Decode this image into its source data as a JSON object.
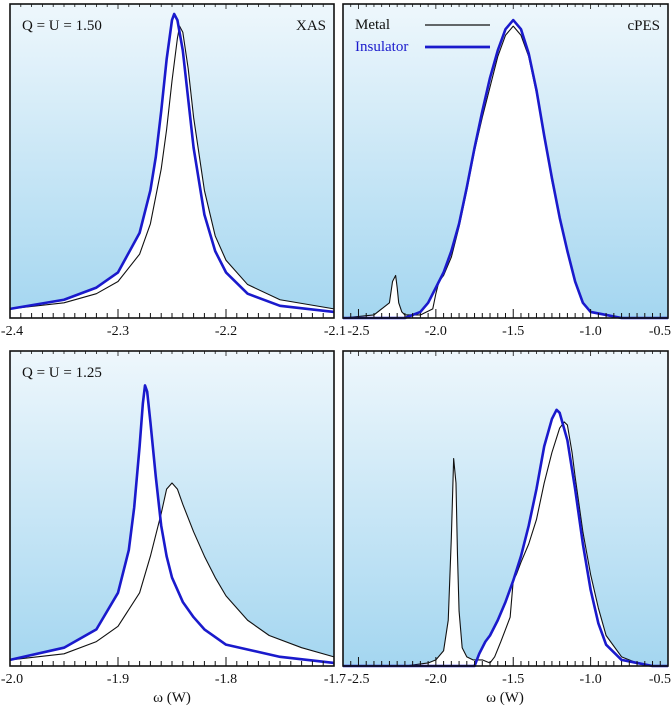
{
  "figure": {
    "colors": {
      "metal": "#111111",
      "insulator": "#1a1acc",
      "bg_top": "#eef7fc",
      "bg_bottom": "#a4d6f0"
    }
  },
  "chart_data": [
    {
      "type": "line",
      "panel": "top-left",
      "annotation_left": "Q = U = 1.50",
      "annotation_right": "XAS",
      "xlabel": "",
      "ylabel": "",
      "xlim": [
        -2.4,
        -2.1
      ],
      "ticks": [
        "-2.4",
        "-2.3",
        "-2.2",
        "-2.1"
      ],
      "ymax": 1.0,
      "series": [
        {
          "key": "metal",
          "x": [
            -2.4,
            -2.35,
            -2.32,
            -2.3,
            -2.28,
            -2.27,
            -2.26,
            -2.255,
            -2.25,
            -2.245,
            -2.243,
            -2.24,
            -2.235,
            -2.23,
            -2.22,
            -2.21,
            -2.2,
            -2.18,
            -2.15,
            -2.1
          ],
          "y": [
            0.03,
            0.05,
            0.08,
            0.12,
            0.21,
            0.31,
            0.49,
            0.62,
            0.78,
            0.92,
            0.96,
            0.94,
            0.82,
            0.66,
            0.42,
            0.27,
            0.19,
            0.11,
            0.06,
            0.03
          ]
        },
        {
          "key": "insulator",
          "x": [
            -2.4,
            -2.35,
            -2.32,
            -2.3,
            -2.28,
            -2.27,
            -2.265,
            -2.26,
            -2.255,
            -2.25,
            -2.248,
            -2.245,
            -2.24,
            -2.235,
            -2.23,
            -2.22,
            -2.21,
            -2.2,
            -2.18,
            -2.15,
            -2.1
          ],
          "y": [
            0.03,
            0.06,
            0.1,
            0.15,
            0.28,
            0.42,
            0.53,
            0.68,
            0.85,
            0.98,
            1.0,
            0.98,
            0.88,
            0.72,
            0.56,
            0.34,
            0.22,
            0.15,
            0.08,
            0.04,
            0.02
          ]
        }
      ]
    },
    {
      "type": "line",
      "panel": "top-right",
      "annotation_right": "cPES",
      "legend": [
        {
          "key": "metal",
          "label": "Metal"
        },
        {
          "key": "insulator",
          "label": "Insulator"
        }
      ],
      "xlabel": "",
      "ylabel": "",
      "xlim": [
        -2.6,
        -0.5
      ],
      "ticks": [
        "-2.5",
        "-2.0",
        "-1.5",
        "-1.0",
        "-0.5"
      ],
      "ymax": 1.0,
      "series": [
        {
          "key": "metal",
          "x": [
            -2.6,
            -2.4,
            -2.3,
            -2.28,
            -2.26,
            -2.25,
            -2.24,
            -2.22,
            -2.2,
            -2.1,
            -2.02,
            -2.0,
            -1.98,
            -1.95,
            -1.9,
            -1.85,
            -1.8,
            -1.75,
            -1.7,
            -1.65,
            -1.6,
            -1.55,
            -1.5,
            -1.45,
            -1.4,
            -1.35,
            -1.3,
            -1.25,
            -1.2,
            -1.15,
            -1.1,
            -1.05,
            -1.0,
            -0.9,
            -0.8,
            -0.7,
            -0.6,
            -0.5
          ],
          "y": [
            0.0,
            0.01,
            0.05,
            0.12,
            0.14,
            0.1,
            0.05,
            0.02,
            0.01,
            0.01,
            0.03,
            0.08,
            0.12,
            0.14,
            0.2,
            0.3,
            0.42,
            0.55,
            0.66,
            0.76,
            0.86,
            0.93,
            0.96,
            0.93,
            0.86,
            0.74,
            0.6,
            0.45,
            0.33,
            0.22,
            0.12,
            0.05,
            0.02,
            0.01,
            0.0,
            0.0,
            0.0,
            0.0
          ]
        },
        {
          "key": "insulator",
          "x": [
            -2.6,
            -2.3,
            -2.2,
            -2.1,
            -2.05,
            -2.0,
            -1.95,
            -1.9,
            -1.85,
            -1.8,
            -1.75,
            -1.7,
            -1.65,
            -1.6,
            -1.55,
            -1.5,
            -1.45,
            -1.4,
            -1.35,
            -1.3,
            -1.25,
            -1.2,
            -1.15,
            -1.1,
            -1.05,
            -1.0,
            -0.9,
            -0.8,
            -0.7,
            -0.6,
            -0.5
          ],
          "y": [
            0.0,
            0.0,
            0.0,
            0.02,
            0.05,
            0.1,
            0.15,
            0.22,
            0.31,
            0.43,
            0.56,
            0.68,
            0.79,
            0.88,
            0.95,
            0.98,
            0.95,
            0.87,
            0.75,
            0.6,
            0.46,
            0.33,
            0.22,
            0.12,
            0.05,
            0.02,
            0.01,
            0.0,
            0.0,
            0.0,
            0.0
          ]
        }
      ]
    },
    {
      "type": "line",
      "panel": "bottom-left",
      "annotation_left": "Q = U = 1.25",
      "xlabel": "ω (W)",
      "ylabel": "",
      "xlim": [
        -2.0,
        -1.7
      ],
      "ticks": [
        "-2.0",
        "-1.9",
        "-1.8",
        "-1.7"
      ],
      "ymax": 1.0,
      "series": [
        {
          "key": "metal",
          "x": [
            -2.0,
            -1.95,
            -1.92,
            -1.9,
            -1.88,
            -1.87,
            -1.86,
            -1.855,
            -1.85,
            -1.845,
            -1.84,
            -1.83,
            -1.82,
            -1.81,
            -1.8,
            -1.78,
            -1.76,
            -1.73,
            -1.7
          ],
          "y": [
            0.02,
            0.04,
            0.08,
            0.13,
            0.24,
            0.36,
            0.5,
            0.58,
            0.6,
            0.58,
            0.53,
            0.44,
            0.36,
            0.29,
            0.23,
            0.15,
            0.1,
            0.06,
            0.03
          ]
        },
        {
          "key": "insulator",
          "x": [
            -2.0,
            -1.95,
            -1.92,
            -1.9,
            -1.89,
            -1.885,
            -1.88,
            -1.877,
            -1.875,
            -1.873,
            -1.87,
            -1.865,
            -1.86,
            -1.855,
            -1.85,
            -1.84,
            -1.83,
            -1.82,
            -1.8,
            -1.75,
            -1.7
          ],
          "y": [
            0.02,
            0.06,
            0.12,
            0.24,
            0.38,
            0.52,
            0.72,
            0.86,
            0.92,
            0.9,
            0.8,
            0.62,
            0.46,
            0.36,
            0.29,
            0.21,
            0.16,
            0.12,
            0.07,
            0.03,
            0.01
          ]
        }
      ]
    },
    {
      "type": "line",
      "panel": "bottom-right",
      "xlabel": "ω (W)",
      "ylabel": "",
      "xlim": [
        -2.6,
        -0.5
      ],
      "ticks": [
        "-2.5",
        "-2.0",
        "-1.5",
        "-1.0",
        "-0.5"
      ],
      "ymax": 1.0,
      "series": [
        {
          "key": "metal",
          "x": [
            -2.6,
            -2.2,
            -2.05,
            -2.0,
            -1.95,
            -1.92,
            -1.9,
            -1.885,
            -1.87,
            -1.86,
            -1.85,
            -1.83,
            -1.8,
            -1.76,
            -1.7,
            -1.65,
            -1.62,
            -1.58,
            -1.55,
            -1.52,
            -1.5,
            -1.48,
            -1.45,
            -1.4,
            -1.35,
            -1.3,
            -1.25,
            -1.2,
            -1.17,
            -1.15,
            -1.12,
            -1.1,
            -1.05,
            -1.0,
            -0.95,
            -0.9,
            -0.8,
            -0.7,
            -0.6,
            -0.5
          ],
          "y": [
            0.0,
            0.0,
            0.01,
            0.02,
            0.05,
            0.15,
            0.42,
            0.68,
            0.6,
            0.36,
            0.18,
            0.06,
            0.03,
            0.02,
            0.02,
            0.01,
            0.03,
            0.08,
            0.12,
            0.16,
            0.28,
            0.3,
            0.34,
            0.4,
            0.48,
            0.6,
            0.7,
            0.78,
            0.8,
            0.79,
            0.7,
            0.62,
            0.44,
            0.3,
            0.19,
            0.1,
            0.03,
            0.01,
            0.0,
            0.0
          ]
        },
        {
          "key": "insulator",
          "x": [
            -2.6,
            -1.75,
            -1.72,
            -1.68,
            -1.65,
            -1.6,
            -1.55,
            -1.5,
            -1.45,
            -1.4,
            -1.35,
            -1.3,
            -1.25,
            -1.22,
            -1.2,
            -1.15,
            -1.1,
            -1.05,
            -1.0,
            -0.95,
            -0.9,
            -0.8,
            -0.7,
            -0.6,
            -0.5
          ],
          "y": [
            0.0,
            0.0,
            0.04,
            0.08,
            0.1,
            0.15,
            0.21,
            0.28,
            0.36,
            0.46,
            0.58,
            0.72,
            0.81,
            0.84,
            0.83,
            0.74,
            0.58,
            0.4,
            0.25,
            0.14,
            0.07,
            0.02,
            0.01,
            0.0,
            0.0
          ]
        }
      ]
    }
  ]
}
